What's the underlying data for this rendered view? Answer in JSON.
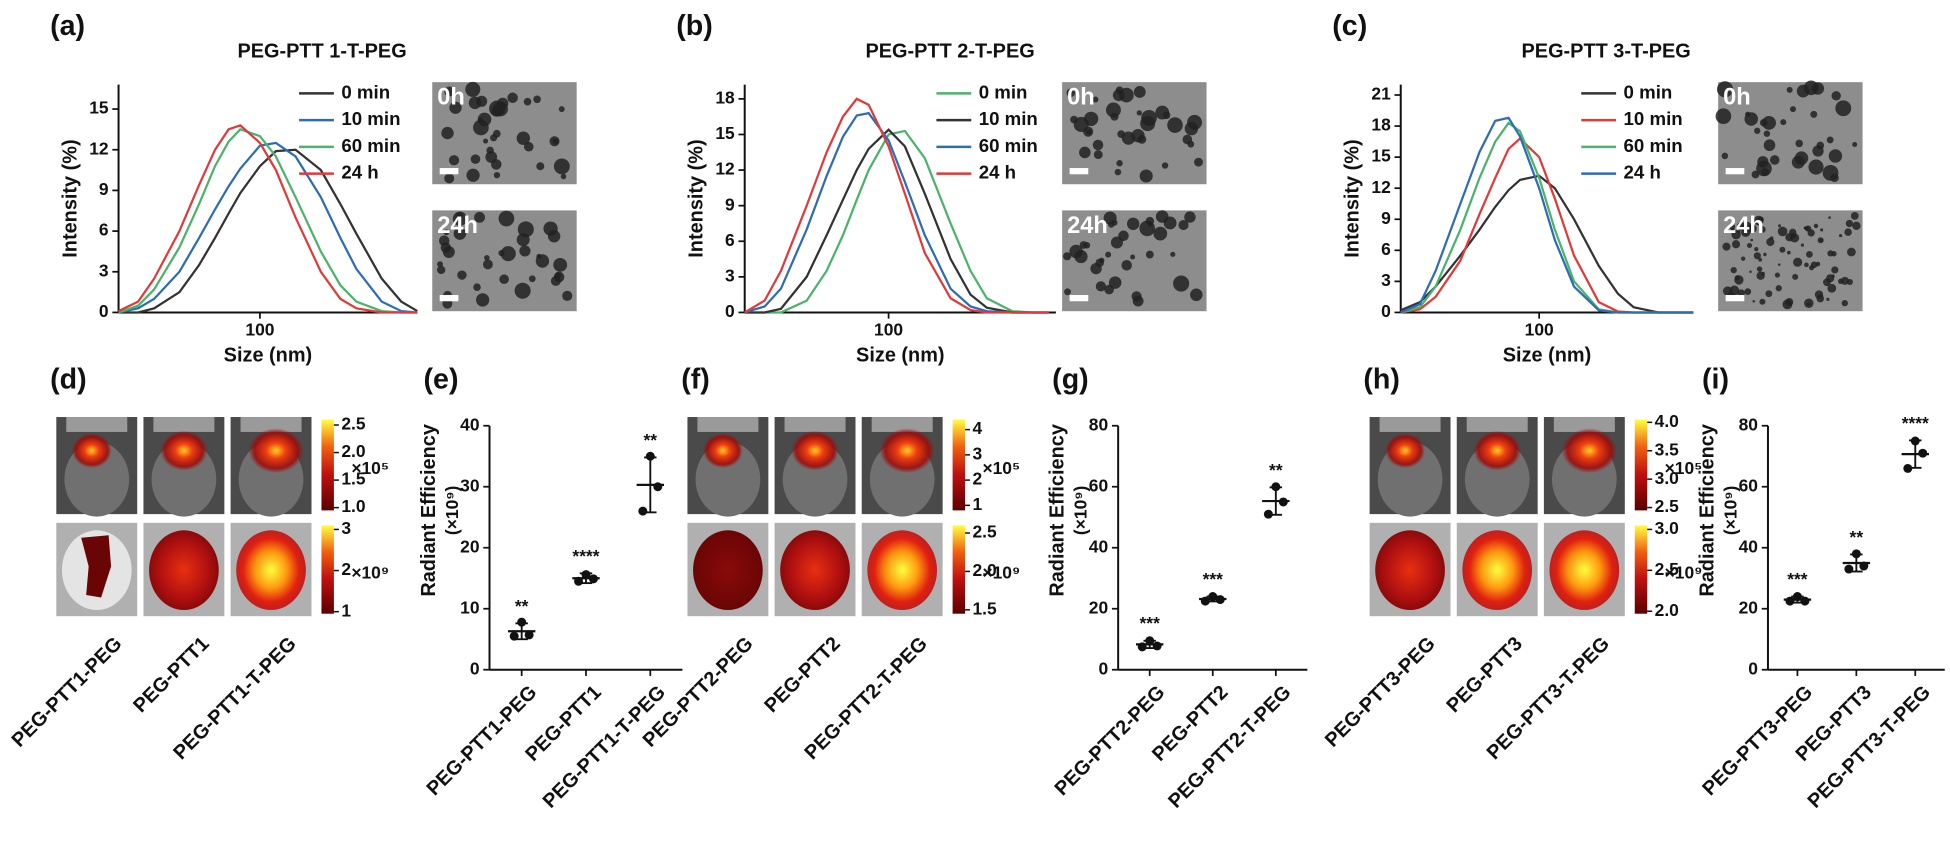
{
  "chart_data": [
    {
      "type": "line",
      "panel_label": "(a)",
      "title": "PEG-PTT 1-T-PEG",
      "x_label": "Size (nm)",
      "y_label": "Intensity (%)",
      "xscale": "log",
      "xlim": [
        20,
        600
      ],
      "xticks": [
        100
      ],
      "ylim": [
        0,
        16.8
      ],
      "yticks": [
        0,
        3,
        6,
        9,
        12,
        15
      ],
      "grid": false,
      "legend": "upper right",
      "inset_labels": [
        "0h",
        "24h"
      ],
      "x": [
        20,
        25,
        30,
        40,
        50,
        60,
        70,
        80,
        100,
        120,
        150,
        200,
        250,
        300,
        400,
        500,
        600
      ],
      "series": [
        {
          "name": "0 min",
          "color": "#333333",
          "values": [
            0,
            0,
            0.3,
            1.5,
            3.5,
            5.5,
            7.3,
            8.8,
            10.8,
            11.9,
            12,
            10.5,
            8,
            5.8,
            2.5,
            0.8,
            0.1
          ]
        },
        {
          "name": "10 min",
          "color": "#2e6db4",
          "values": [
            0,
            0.3,
            1,
            3,
            5.5,
            7.6,
            9.3,
            10.6,
            12.3,
            12.5,
            11.5,
            8.5,
            5.5,
            3.2,
            0.8,
            0.1,
            0
          ]
        },
        {
          "name": "60 min",
          "color": "#4cb36b",
          "values": [
            0,
            0.5,
            1.7,
            4.8,
            8,
            10.8,
            12.6,
            13.5,
            13,
            11.5,
            8.5,
            4.5,
            2,
            0.8,
            0.1,
            0,
            0
          ]
        },
        {
          "name": "24 h",
          "color": "#e03a3a",
          "values": [
            0.1,
            0.8,
            2.5,
            6,
            9.4,
            12,
            13.5,
            13.8,
            12.5,
            10.5,
            7,
            3,
            1,
            0.3,
            0,
            0,
            0
          ]
        }
      ]
    },
    {
      "type": "line",
      "panel_label": "(b)",
      "title": "PEG-PTT 2-T-PEG",
      "x_label": "Size (nm)",
      "y_label": "Intensity (%)",
      "xscale": "log",
      "xlim": [
        20,
        650
      ],
      "xticks": [
        100
      ],
      "ylim": [
        0,
        19.2
      ],
      "yticks": [
        0,
        3,
        6,
        9,
        12,
        15,
        18
      ],
      "grid": false,
      "legend": "upper right",
      "inset_labels": [
        "0h",
        "24h"
      ],
      "x": [
        20,
        25,
        30,
        40,
        50,
        60,
        70,
        80,
        100,
        120,
        150,
        200,
        250,
        300,
        400,
        500,
        600
      ],
      "series": [
        {
          "name": "0 min",
          "color": "#4cb36b",
          "values": [
            0,
            0,
            0,
            1,
            3.5,
            6.5,
            9.5,
            12,
            15,
            15.3,
            13,
            7.5,
            3.5,
            1.2,
            0.1,
            0,
            0
          ]
        },
        {
          "name": "10 min",
          "color": "#333333",
          "values": [
            0,
            0,
            0.3,
            3,
            6.5,
            9.5,
            12,
            13.8,
            15.4,
            14,
            10,
            4.5,
            1.5,
            0.4,
            0,
            0,
            0
          ]
        },
        {
          "name": "60 min",
          "color": "#2e6db4",
          "values": [
            0,
            0.5,
            2,
            7,
            11.5,
            14.8,
            16.6,
            16.8,
            14.5,
            11,
            6.5,
            2,
            0.5,
            0.1,
            0,
            0,
            0
          ]
        },
        {
          "name": "24 h",
          "color": "#e03a3a",
          "values": [
            0,
            1,
            3.5,
            9,
            13.5,
            16.5,
            18,
            17.5,
            14,
            10,
            5,
            1.2,
            0.2,
            0,
            0,
            0,
            0
          ]
        }
      ]
    },
    {
      "type": "line",
      "panel_label": "(c)",
      "title": "PEG-PTT 3-T-PEG",
      "x_label": "Size (nm)",
      "y_label": "Intensity (%)",
      "xscale": "log",
      "xlim": [
        20,
        600
      ],
      "xticks": [
        100
      ],
      "ylim": [
        0,
        22
      ],
      "yticks": [
        0,
        3,
        6,
        9,
        12,
        15,
        18,
        21
      ],
      "grid": false,
      "legend": "upper right",
      "inset_labels": [
        "0h",
        "24h"
      ],
      "x": [
        20,
        25,
        30,
        40,
        50,
        60,
        70,
        80,
        100,
        120,
        150,
        200,
        250,
        300,
        400,
        500,
        600
      ],
      "series": [
        {
          "name": "0 min",
          "color": "#333333",
          "values": [
            0.2,
            1,
            2.5,
            5.5,
            8,
            10.2,
            11.8,
            12.8,
            13.2,
            12,
            9,
            4.5,
            1.8,
            0.5,
            0,
            0,
            0
          ]
        },
        {
          "name": "10 min",
          "color": "#e03a3a",
          "values": [
            0,
            0.3,
            1.5,
            5,
            9.5,
            13,
            15.8,
            16.8,
            15,
            11,
            5.5,
            1,
            0.1,
            0,
            0,
            0,
            0
          ]
        },
        {
          "name": "60 min",
          "color": "#4cb36b",
          "values": [
            0,
            0.5,
            2.5,
            8,
            13,
            16.5,
            18.3,
            17.5,
            13,
            8,
            3,
            0.3,
            0,
            0,
            0,
            0,
            0
          ]
        },
        {
          "name": "24 h",
          "color": "#2e6db4",
          "values": [
            0,
            0.8,
            4,
            10.5,
            15.5,
            18.5,
            18.8,
            17,
            12,
            7,
            2.5,
            0.2,
            0,
            0,
            0,
            0,
            0
          ]
        }
      ]
    },
    {
      "type": "dot",
      "panel_label": "(e)",
      "y_label": "Radiant Efficiency",
      "y_unit": "(×10⁹)",
      "ylim": [
        0,
        40
      ],
      "yticks": [
        0,
        10,
        20,
        30,
        40
      ],
      "categories": [
        "PEG-PTT1-PEG",
        "PEG-PTT1",
        "PEG-PTT1-T-PEG"
      ],
      "values": [
        [
          7.8,
          5.5,
          5.7
        ],
        [
          15.6,
          14.5,
          14.9
        ],
        [
          35,
          26,
          30
        ]
      ],
      "means": [
        6.3,
        15,
        30.3
      ],
      "errors": [
        1.3,
        0.8,
        4.5
      ],
      "annotations": [
        "**",
        "****",
        "**"
      ]
    },
    {
      "type": "dot",
      "panel_label": "(g)",
      "y_label": "Radiant Efficiency",
      "y_unit": "(×10⁹)",
      "ylim": [
        0,
        80
      ],
      "yticks": [
        0,
        20,
        40,
        60,
        80
      ],
      "categories": [
        "PEG-PTT2-PEG",
        "PEG-PTT2",
        "PEG-PTT2-T-PEG"
      ],
      "values": [
        [
          9.5,
          7.5,
          7.8
        ],
        [
          24,
          22.5,
          23
        ],
        [
          60,
          51,
          55
        ]
      ],
      "means": [
        8.3,
        23.2,
        55.3
      ],
      "errors": [
        1.2,
        0.8,
        4.5
      ],
      "annotations": [
        "***",
        "***",
        "**"
      ]
    },
    {
      "type": "dot",
      "panel_label": "(i)",
      "y_label": "Radiant Efficiency",
      "y_unit": "(×10⁹)",
      "ylim": [
        0,
        80
      ],
      "yticks": [
        0,
        20,
        40,
        60,
        80
      ],
      "categories": [
        "PEG-PTT3-PEG",
        "PEG-PTT3",
        "PEG-PTT3-T-PEG"
      ],
      "values": [
        [
          24,
          22.5,
          22.5
        ],
        [
          38,
          33,
          34
        ],
        [
          75,
          66,
          71
        ]
      ],
      "means": [
        23,
        35,
        70.7
      ],
      "errors": [
        1,
        2.8,
        4.5
      ],
      "annotations": [
        "***",
        "**",
        "****"
      ]
    }
  ],
  "image_panels": [
    {
      "panel_label": "(d)",
      "categories": [
        "PEG-PTT1-PEG",
        "PEG-PTT1",
        "PEG-PTT1-T-PEG"
      ],
      "colorbars": [
        {
          "lim": [
            0.95,
            2.6
          ],
          "ticks": [
            2.5,
            {
              "value": 2,
              "label": "2.0"
            },
            1.5,
            {
              "value": 1,
              "label": "1.0"
            }
          ],
          "exponent": "×10⁵"
        },
        {
          "lim": [
            0.95,
            3.1
          ],
          "ticks": [
            3,
            2,
            1
          ],
          "exponent": "×10⁹"
        }
      ]
    },
    {
      "panel_label": "(f)",
      "categories": [
        "PEG-PTT2-PEG",
        "PEG-PTT2",
        "PEG-PTT2-T-PEG"
      ],
      "colorbars": [
        {
          "lim": [
            0.8,
            4.4
          ],
          "ticks": [
            4,
            3,
            2,
            1
          ],
          "exponent": "×10⁵"
        },
        {
          "lim": [
            1.45,
            2.6
          ],
          "ticks": [
            2.5,
            {
              "value": 2,
              "label": "2.0"
            },
            1.5
          ],
          "exponent": "×10⁹"
        }
      ]
    },
    {
      "panel_label": "(h)",
      "categories": [
        "PEG-PTT3-PEG",
        "PEG-PTT3",
        "PEG-PTT3-T-PEG"
      ],
      "colorbars": [
        {
          "lim": [
            2.45,
            4.05
          ],
          "ticks": [
            {
              "value": 4,
              "label": "4.0"
            },
            3.5,
            {
              "value": 3,
              "label": "3.0"
            },
            2.5
          ],
          "exponent": "×10⁵"
        },
        {
          "lim": [
            1.97,
            3.05
          ],
          "ticks": [
            {
              "value": 3,
              "label": "3.0"
            },
            2.5,
            {
              "value": 2,
              "label": "2.0"
            }
          ],
          "exponent": "×10⁹"
        }
      ]
    }
  ]
}
